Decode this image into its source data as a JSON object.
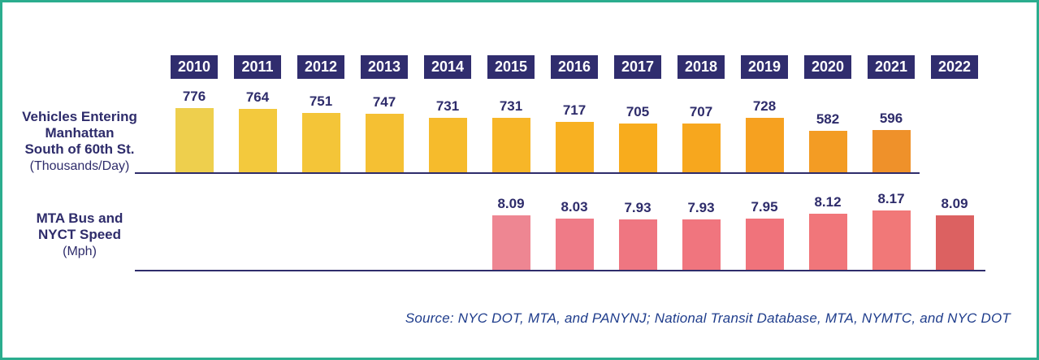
{
  "frame": {
    "border_color": "#2bad8e",
    "background": "#ffffff"
  },
  "years": [
    "2010",
    "2011",
    "2012",
    "2013",
    "2014",
    "2015",
    "2016",
    "2017",
    "2018",
    "2019",
    "2020",
    "2021",
    "2022"
  ],
  "year_header": {
    "box_color": "#302d6e",
    "text_color": "#ffffff"
  },
  "row1": {
    "label_lines": [
      "Vehicles Entering",
      "Manhattan",
      "South of 60th St."
    ],
    "unit": "(Thousands/Day)"
  },
  "row2": {
    "label_lines": [
      "MTA Bus and",
      "NYCT Speed"
    ],
    "unit": "(Mph)"
  },
  "source": {
    "text": "Source: NYC DOT, MTA, and PANYNJ; National Transit Database, MTA, NYMTC, and NYC DOT"
  },
  "colors": {
    "navy": "#2e2c6b",
    "axis_line": "#2e2c6b"
  },
  "chart_data": [
    {
      "type": "bar",
      "title": "Vehicles Entering Manhattan South of 60th St.",
      "ylabel": "Thousands/Day",
      "categories": [
        2010,
        2011,
        2012,
        2013,
        2014,
        2015,
        2016,
        2017,
        2018,
        2019,
        2020,
        2021
      ],
      "values": [
        776,
        764,
        751,
        747,
        731,
        731,
        717,
        705,
        707,
        728,
        582,
        596
      ],
      "bar_colors": [
        "#eecf4d",
        "#f3c93d",
        "#f4c538",
        "#f5c033",
        "#f6bb2c",
        "#f7b628",
        "#f8b122",
        "#f8ac1d",
        "#f7a71e",
        "#f6a120",
        "#f39c24",
        "#ef912a"
      ],
      "value_label_format": "integer",
      "grid": false,
      "legend": false
    },
    {
      "type": "bar",
      "title": "MTA Bus and NYCT Speed",
      "ylabel": "Mph",
      "categories": [
        2015,
        2016,
        2017,
        2018,
        2019,
        2020,
        2021,
        2022
      ],
      "values": [
        8.09,
        8.03,
        7.93,
        7.93,
        7.95,
        8.12,
        8.17,
        8.09
      ],
      "bar_colors": [
        "#ee8692",
        "#ef7b87",
        "#ef7681",
        "#f0757e",
        "#f0737b",
        "#f1767a",
        "#f17878",
        "#dc6161"
      ],
      "value_label_format": "2dp",
      "grid": false,
      "legend": false
    }
  ]
}
